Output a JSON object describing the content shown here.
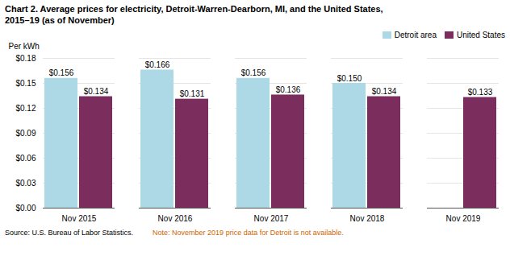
{
  "chart_data": {
    "type": "bar",
    "title": "Chart 2. Average prices for electricity, Detroit-Warren-Dearborn, MI, and the United States,\n2015–19  (as of November)",
    "ylabel": "Per kWh",
    "categories": [
      "Nov 2015",
      "Nov 2016",
      "Nov 2017",
      "Nov 2018",
      "Nov 2019"
    ],
    "series": [
      {
        "name": "Detroit area",
        "color": "#add8e6",
        "values": [
          0.156,
          0.166,
          0.156,
          0.15,
          null
        ],
        "value_labels": [
          "$0.156",
          "$0.166",
          "$0.156",
          "$0.150",
          null
        ]
      },
      {
        "name": "United States",
        "color": "#7b2d5e",
        "values": [
          0.134,
          0.131,
          0.136,
          0.134,
          0.133
        ],
        "value_labels": [
          "$0.134",
          "$0.131",
          "$0.136",
          "$0.134",
          "$0.133"
        ]
      }
    ],
    "ylim": [
      0,
      0.18
    ],
    "yticks": [
      {
        "value": 0.0,
        "label": "$0.00"
      },
      {
        "value": 0.03,
        "label": "$0.03"
      },
      {
        "value": 0.06,
        "label": "$0.06"
      },
      {
        "value": 0.09,
        "label": "$0.09"
      },
      {
        "value": 0.12,
        "label": "$0.12"
      },
      {
        "value": 0.15,
        "label": "$0.15"
      },
      {
        "value": 0.18,
        "label": "$0.18"
      }
    ],
    "grid": true,
    "legend": "upper right",
    "data_labels": true,
    "annotations": [
      {
        "text": "Source: U.S. Bureau of Labor Statistics.",
        "color": "#000000"
      },
      {
        "text": "Note: November 2019 price data for Detroit is not available.",
        "color": "#cc6600"
      }
    ]
  }
}
